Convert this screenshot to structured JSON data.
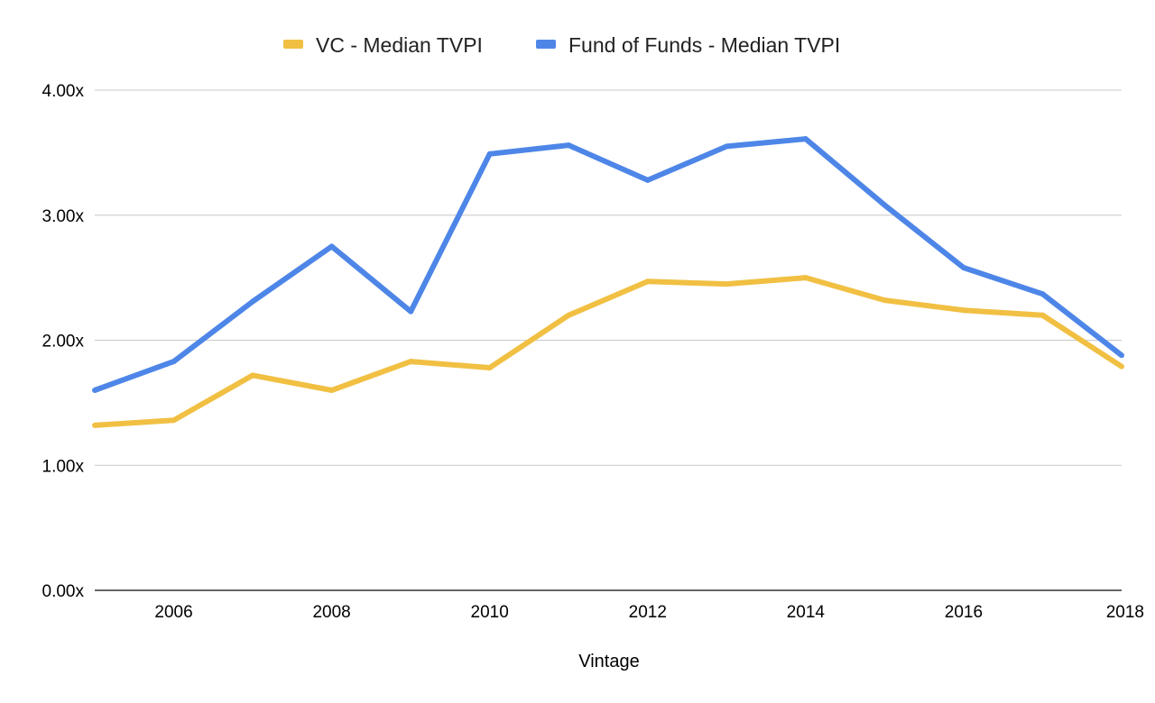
{
  "chart_data": {
    "type": "line",
    "title": "",
    "xlabel": "Vintage",
    "ylabel": "",
    "x": [
      2005,
      2006,
      2007,
      2008,
      2009,
      2010,
      2011,
      2012,
      2013,
      2014,
      2015,
      2016,
      2017,
      2018
    ],
    "xlim": [
      2005,
      2018
    ],
    "ylim": [
      0,
      4
    ],
    "x_tick_values": [
      2006,
      2008,
      2010,
      2012,
      2014,
      2016,
      2018
    ],
    "x_tick_labels": [
      "2006",
      "2008",
      "2010",
      "2012",
      "2014",
      "2016",
      "2018"
    ],
    "y_tick_values": [
      0,
      1,
      2,
      3,
      4
    ],
    "y_tick_labels": [
      "0.00x",
      "1.00x",
      "2.00x",
      "3.00x",
      "4.00x"
    ],
    "grid": true,
    "legend_position": "top",
    "series": [
      {
        "name": "VC - Median TVPI",
        "color": "#F1C043",
        "values": [
          1.32,
          1.36,
          1.72,
          1.6,
          1.83,
          1.78,
          2.2,
          2.47,
          2.45,
          2.5,
          2.32,
          2.24,
          2.2,
          1.79
        ]
      },
      {
        "name": "Fund of Funds - Median TVPI",
        "color": "#4E86E8",
        "values": [
          1.6,
          1.83,
          2.31,
          2.75,
          2.23,
          3.49,
          3.56,
          3.28,
          3.55,
          3.61,
          3.08,
          2.58,
          2.37,
          1.88
        ]
      }
    ]
  }
}
